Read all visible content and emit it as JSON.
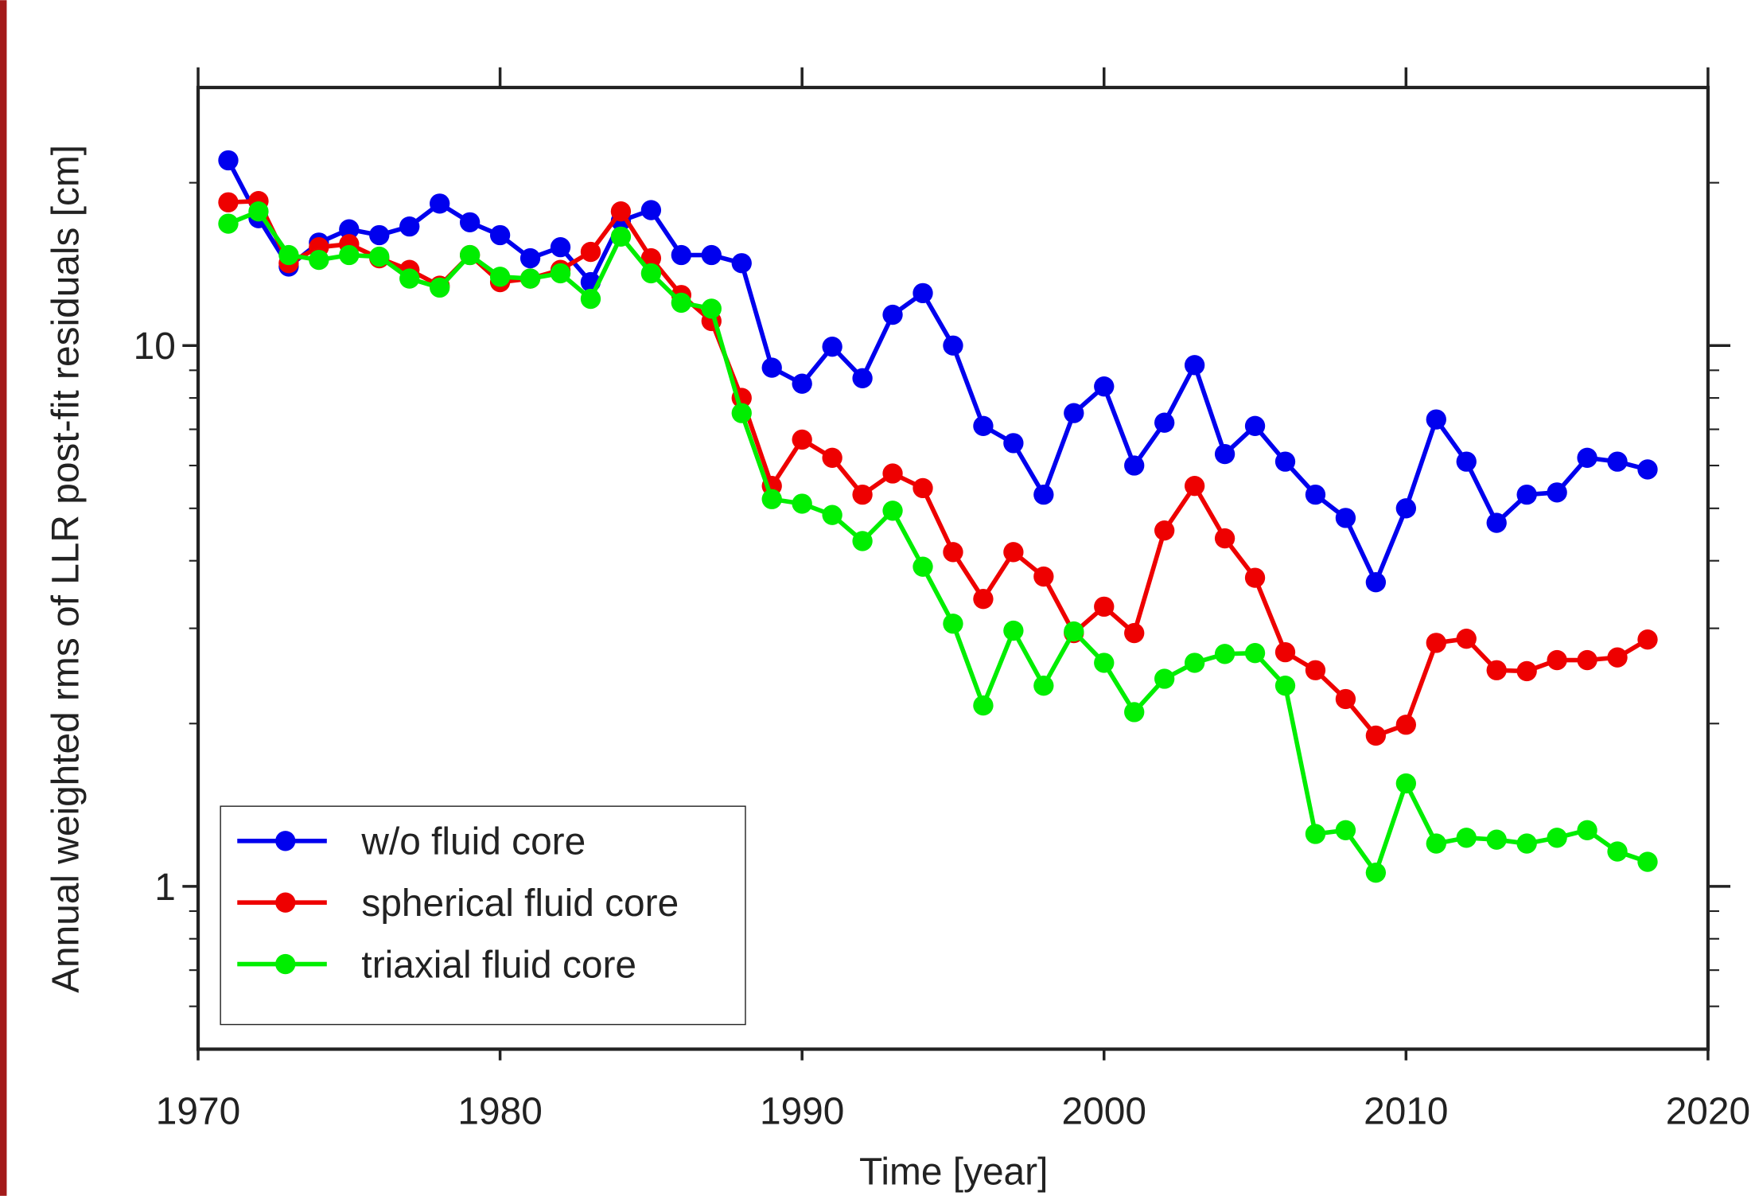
{
  "chart_data": {
    "type": "line",
    "x_label": "Time [year]",
    "y_label": "Annual weighted rms of LLR post-fit residuals [cm]",
    "x": [
      1971,
      1972,
      1973,
      1974,
      1975,
      1976,
      1977,
      1978,
      1979,
      1980,
      1981,
      1982,
      1983,
      1984,
      1985,
      1986,
      1987,
      1988,
      1989,
      1990,
      1991,
      1992,
      1993,
      1994,
      1995,
      1996,
      1997,
      1998,
      1999,
      2000,
      2001,
      2002,
      2003,
      2004,
      2005,
      2006,
      2007,
      2008,
      2009,
      2010,
      2011,
      2012,
      2013,
      2014,
      2015,
      2016,
      2017,
      2018
    ],
    "series": [
      {
        "name": "w/o fluid core",
        "color": "#0000ee",
        "values": [
          22.0,
          17.2,
          14.0,
          15.5,
          16.4,
          16.0,
          16.6,
          18.3,
          16.9,
          16.0,
          14.5,
          15.2,
          13.1,
          17.0,
          17.8,
          14.7,
          14.7,
          14.2,
          9.1,
          8.5,
          9.95,
          8.7,
          11.4,
          12.5,
          10.0,
          7.1,
          6.6,
          5.3,
          7.5,
          8.4,
          6.0,
          7.2,
          9.2,
          6.3,
          7.1,
          6.1,
          5.3,
          4.8,
          3.65,
          5.0,
          7.3,
          6.1,
          4.7,
          5.3,
          5.35,
          6.2,
          6.1,
          5.9
        ]
      },
      {
        "name": "spherical fluid core",
        "color": "#ee0000",
        "values": [
          18.4,
          18.5,
          14.2,
          15.2,
          15.4,
          14.5,
          13.8,
          12.9,
          14.7,
          13.1,
          13.3,
          13.8,
          14.9,
          17.7,
          14.5,
          12.4,
          11.1,
          8.0,
          5.5,
          6.7,
          6.2,
          5.3,
          5.8,
          5.45,
          4.15,
          3.4,
          4.15,
          3.74,
          2.94,
          3.29,
          2.94,
          4.55,
          5.5,
          4.4,
          3.72,
          2.71,
          2.51,
          2.22,
          1.9,
          1.99,
          2.82,
          2.87,
          2.51,
          2.5,
          2.62,
          2.62,
          2.65,
          2.86
        ]
      },
      {
        "name": "triaxial fluid core",
        "color": "#00ee00",
        "values": [
          16.8,
          17.7,
          14.7,
          14.4,
          14.7,
          14.6,
          13.3,
          12.8,
          14.7,
          13.4,
          13.3,
          13.6,
          12.2,
          15.9,
          13.6,
          12.0,
          11.7,
          7.5,
          5.2,
          5.1,
          4.86,
          4.35,
          4.95,
          3.9,
          3.06,
          2.16,
          2.97,
          2.35,
          2.96,
          2.59,
          2.1,
          2.42,
          2.59,
          2.69,
          2.7,
          2.35,
          1.25,
          1.27,
          1.06,
          1.55,
          1.2,
          1.23,
          1.22,
          1.2,
          1.23,
          1.27,
          1.16,
          1.11
        ]
      }
    ],
    "xlim": [
      1970,
      2020
    ],
    "xticks": [
      1970,
      1980,
      1990,
      2000,
      2010,
      2020
    ],
    "ylim": [
      0.5,
      30
    ],
    "yticks": [
      1,
      10
    ],
    "yminorticks": [
      0.6,
      0.7,
      0.8,
      0.9,
      2,
      3,
      4,
      5,
      6,
      7,
      8,
      9,
      20
    ],
    "ylog": true,
    "legend": "lower left"
  }
}
